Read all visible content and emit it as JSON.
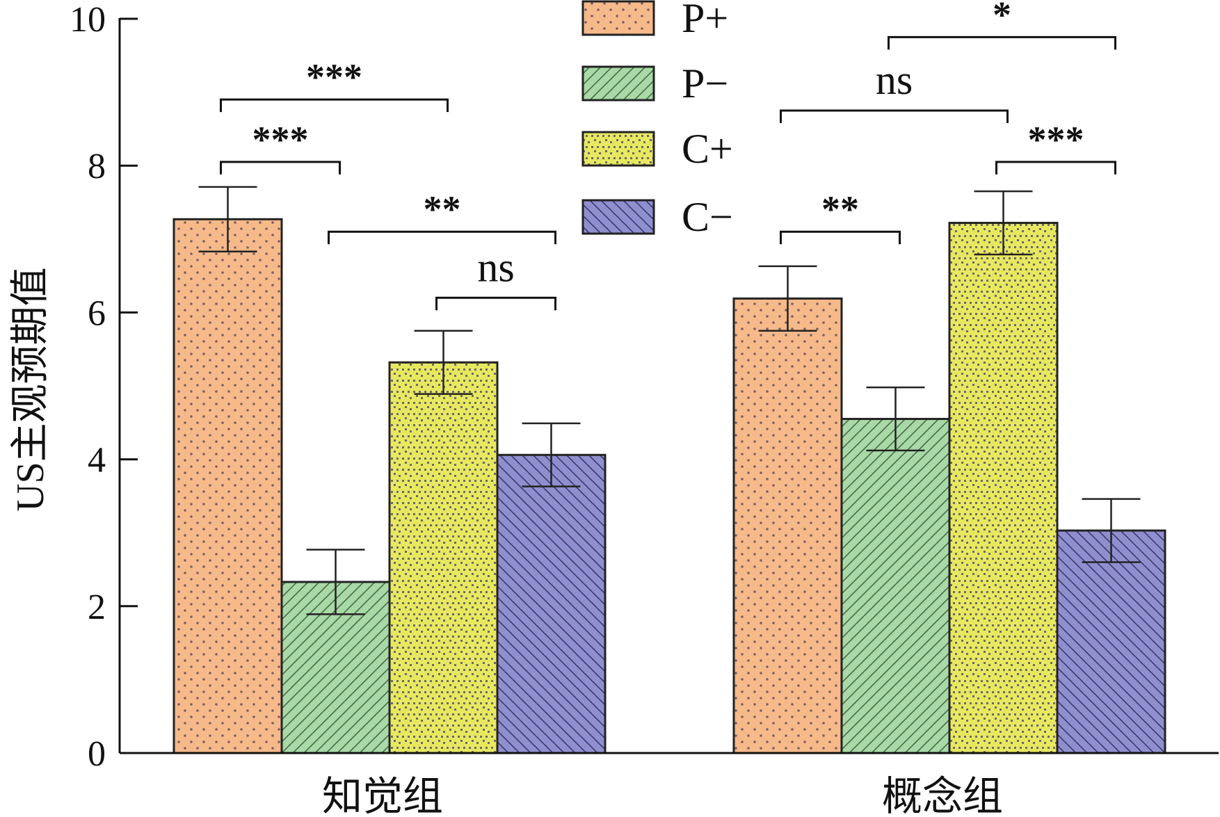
{
  "chart_data": {
    "type": "bar",
    "title": "",
    "xlabel": "",
    "ylabel": "US主观预期值",
    "ylim": [
      0,
      10
    ],
    "yticks": [
      0,
      2,
      4,
      6,
      8,
      10
    ],
    "categories": [
      "知觉组",
      "概念组"
    ],
    "legend_position": "top-center",
    "series": [
      {
        "name": "P+",
        "values": [
          7.27,
          6.19
        ],
        "errors": [
          0.44,
          0.44
        ],
        "color": "#f6b98a",
        "pattern": "dots"
      },
      {
        "name": "P−",
        "values": [
          2.33,
          4.55
        ],
        "errors": [
          0.44,
          0.43
        ],
        "color": "#a8d9a6",
        "pattern": "diagonal-right"
      },
      {
        "name": "C+",
        "values": [
          5.32,
          7.22
        ],
        "errors": [
          0.43,
          0.43
        ],
        "color": "#e8e860",
        "pattern": "checker"
      },
      {
        "name": "C−",
        "values": [
          4.06,
          3.03
        ],
        "errors": [
          0.43,
          0.43
        ],
        "color": "#8f8fd0",
        "pattern": "diagonal-left"
      }
    ],
    "significance": [
      {
        "category": 0,
        "from": 0,
        "to": 2,
        "label": "***",
        "y": 8.9
      },
      {
        "category": 0,
        "from": 0,
        "to": 1,
        "label": "***",
        "y": 8.05
      },
      {
        "category": 0,
        "from": 1,
        "to": 3,
        "label": "**",
        "y": 7.1
      },
      {
        "category": 0,
        "from": 2,
        "to": 3,
        "label": "ns",
        "y": 6.2
      },
      {
        "category": 1,
        "from": 0,
        "to": 2,
        "label": "ns",
        "y": 8.75
      },
      {
        "category": 1,
        "from": 1,
        "to": 3,
        "label": "*",
        "y": 9.75
      },
      {
        "category": 1,
        "from": 2,
        "to": 3,
        "label": "***",
        "y": 8.05
      },
      {
        "category": 1,
        "from": 0,
        "to": 1,
        "label": "**",
        "y": 7.1
      }
    ]
  }
}
